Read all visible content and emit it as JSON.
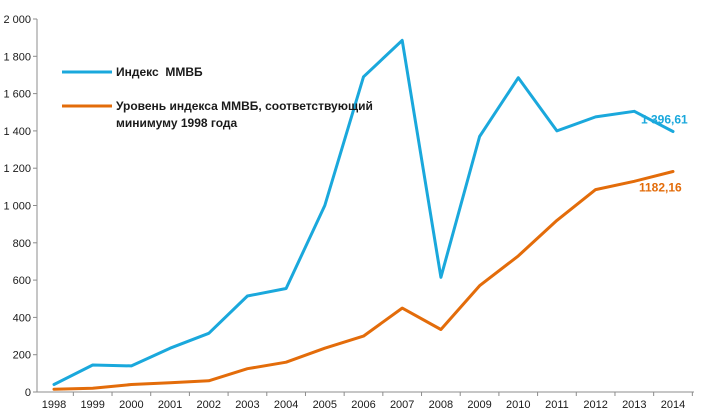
{
  "chart_data": {
    "type": "line",
    "title": "",
    "xlabel": "",
    "ylabel": "",
    "x": [
      "1998",
      "1999",
      "2000",
      "2001",
      "2002",
      "2003",
      "2004",
      "2005",
      "2006",
      "2007",
      "2008",
      "2009",
      "2010",
      "2011",
      "2012",
      "2013",
      "2014"
    ],
    "ylim": [
      0,
      2000
    ],
    "yticks": [
      0,
      200,
      400,
      600,
      800,
      1000,
      1200,
      1400,
      1600,
      1800,
      2000
    ],
    "ytick_labels": [
      "0",
      "200",
      "400",
      "600",
      "800",
      "1 000",
      "1 200",
      "1 400",
      "1 600",
      "1 800",
      "2 000"
    ],
    "grid": false,
    "legend_position": "top-left",
    "series": [
      {
        "name": "Индекс  ММВБ",
        "color": "#1aa8dc",
        "values": [
          40,
          145,
          140,
          235,
          315,
          515,
          555,
          1000,
          1690,
          1885,
          615,
          1370,
          1685,
          1400,
          1475,
          1505,
          1396.61
        ],
        "end_label": "1 396,61"
      },
      {
        "name_lines": [
          "Уровень индекса ММВБ, соответствующий",
          "минимуму 1998 года"
        ],
        "color": "#e36c0a",
        "values": [
          15,
          20,
          40,
          50,
          60,
          125,
          160,
          235,
          300,
          450,
          335,
          570,
          730,
          920,
          1085,
          1130,
          1182.16
        ],
        "end_label": "1182,16"
      }
    ]
  }
}
